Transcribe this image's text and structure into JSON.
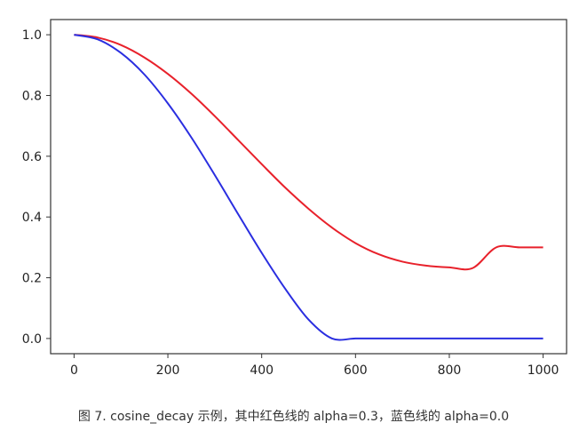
{
  "caption": "图 7. cosine_decay 示例，其中红色线的 alpha=0.3，蓝色线的 alpha=0.0",
  "chart_data": {
    "type": "line",
    "title": "",
    "xlabel": "",
    "ylabel": "",
    "xlim": [
      -50,
      1050
    ],
    "ylim": [
      -0.05,
      1.05
    ],
    "xticks": [
      0,
      200,
      400,
      600,
      800,
      1000
    ],
    "yticks": [
      0.0,
      0.2,
      0.4,
      0.6,
      0.8,
      1.0
    ],
    "xtick_labels": [
      "0",
      "200",
      "400",
      "600",
      "800",
      "1000"
    ],
    "ytick_labels": [
      "0.0",
      "0.2",
      "0.4",
      "0.6",
      "0.8",
      "1.0"
    ],
    "grid": false,
    "series": [
      {
        "color": "#e8212b",
        "x": [
          0,
          50,
          100,
          150,
          200,
          250,
          300,
          350,
          400,
          450,
          500,
          550,
          600,
          650,
          700,
          750,
          800,
          850,
          900,
          950,
          1000
        ],
        "y": [
          1.0,
          0.991,
          0.966,
          0.925,
          0.871,
          0.806,
          0.732,
          0.653,
          0.574,
          0.497,
          0.427,
          0.365,
          0.314,
          0.277,
          0.253,
          0.24,
          0.234,
          0.232,
          0.3,
          0.3,
          0.3
        ]
      },
      {
        "color": "#2a2ee0",
        "x": [
          0,
          50,
          100,
          150,
          200,
          250,
          300,
          350,
          400,
          450,
          500,
          550,
          600,
          650,
          700,
          750,
          800,
          850,
          900,
          950,
          1000
        ],
        "y": [
          1.0,
          0.985,
          0.94,
          0.869,
          0.774,
          0.662,
          0.538,
          0.409,
          0.282,
          0.164,
          0.062,
          0.0,
          0.0,
          0.0,
          0.0,
          0.0,
          0.0,
          0.0,
          0.0,
          0.0,
          0.0
        ]
      }
    ]
  }
}
